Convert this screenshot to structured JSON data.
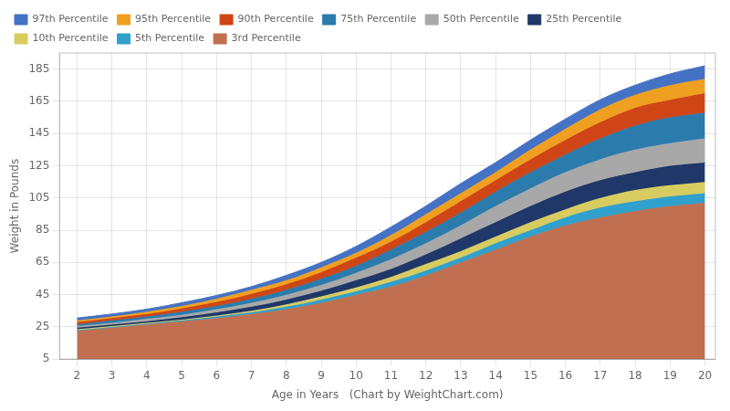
{
  "chart_data": {
    "type": "area",
    "xlabel": "Age in Years   (Chart by WeightChart.com)",
    "ylabel": "Weight in Pounds",
    "x": [
      2,
      3,
      4,
      5,
      6,
      7,
      8,
      9,
      10,
      11,
      12,
      13,
      14,
      15,
      16,
      17,
      18,
      19,
      20
    ],
    "series": [
      {
        "name": "97th Percentile",
        "color": "#4472C4",
        "values": [
          30.5,
          33,
          36,
          40,
          44.5,
          50,
          57,
          65,
          75,
          87,
          100,
          114,
          127,
          141,
          154,
          166,
          175,
          182,
          187
        ]
      },
      {
        "name": "95th Percentile",
        "color": "#F0A020",
        "values": [
          29,
          31.5,
          34.5,
          38,
          42.5,
          48,
          54,
          62,
          71,
          82,
          95,
          108,
          121,
          135,
          148,
          160,
          169,
          175,
          179
        ]
      },
      {
        "name": "90th Percentile",
        "color": "#D04515",
        "values": [
          28,
          30.5,
          33,
          36.5,
          40.5,
          45.5,
          51.5,
          59,
          68,
          78,
          90,
          103,
          116,
          129,
          141,
          152,
          161,
          166,
          170
        ]
      },
      {
        "name": "75th Percentile",
        "color": "#2B7BAD",
        "values": [
          26.5,
          29,
          31.5,
          34.5,
          38,
          42.5,
          48,
          55,
          63,
          73,
          84,
          96,
          109,
          121,
          132,
          142,
          150,
          155,
          158
        ]
      },
      {
        "name": "50th Percentile",
        "color": "#A8A8A8",
        "values": [
          25.5,
          27.5,
          30,
          32.5,
          36,
          40,
          45,
          51,
          58.5,
          67,
          77,
          88,
          100,
          111,
          121,
          129,
          135,
          139,
          142
        ]
      },
      {
        "name": "25th Percentile",
        "color": "#1F3869",
        "values": [
          24.5,
          26.5,
          28.5,
          31,
          34,
          37.5,
          42,
          47.5,
          54,
          61,
          70,
          80,
          90,
          100,
          109,
          116,
          121,
          125,
          127
        ]
      },
      {
        "name": "10th Percentile",
        "color": "#D8CC60",
        "values": [
          23.5,
          25.5,
          27.5,
          29.5,
          32,
          35,
          39,
          44,
          49.5,
          56,
          64,
          72,
          81,
          90,
          98,
          105,
          110,
          113,
          115
        ]
      },
      {
        "name": "5th Percentile",
        "color": "#30A0CC",
        "values": [
          23,
          25,
          27,
          29,
          31.5,
          34,
          37.5,
          42,
          47,
          53,
          60,
          68,
          77,
          85,
          93,
          99,
          103,
          106,
          108
        ]
      },
      {
        "name": "3rd Percentile",
        "color": "#C07050",
        "values": [
          22.5,
          24.5,
          26.5,
          28.5,
          30.5,
          33,
          36,
          40,
          45,
          50,
          57,
          65,
          73,
          81,
          88,
          93,
          97,
          100,
          102
        ]
      }
    ],
    "xlim": [
      1.5,
      20.3
    ],
    "xticks": [
      2,
      3,
      4,
      5,
      6,
      7,
      8,
      9,
      10,
      11,
      12,
      13,
      14,
      15,
      16,
      17,
      18,
      19,
      20
    ],
    "ylim": [
      5,
      195
    ],
    "yticks": [
      5,
      25,
      45,
      65,
      85,
      105,
      125,
      145,
      165,
      185
    ],
    "grid": true,
    "legend": "upper left"
  }
}
